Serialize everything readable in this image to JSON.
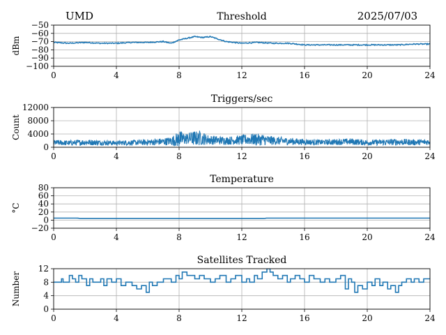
{
  "header": {
    "left": "UMD",
    "right": "2025/07/03"
  },
  "colors": {
    "line": "#1f77b4",
    "grid": "#b0b0b0",
    "axis": "#000000"
  },
  "chart_data": [
    {
      "type": "line",
      "title": "Threshold",
      "ylabel": "dBm",
      "xlim": [
        0,
        24
      ],
      "ylim": [
        -100,
        -50
      ],
      "xticks": [
        0,
        4,
        8,
        12,
        16,
        20,
        24
      ],
      "yticks": [
        -100,
        -90,
        -80,
        -70,
        -60,
        -50
      ],
      "ytick_labels": [
        "−100",
        "−90",
        "−80",
        "−70",
        "−60",
        "−50"
      ],
      "grid": true,
      "series": [
        {
          "x": [
            0,
            1,
            2,
            3,
            4,
            5,
            6,
            7,
            7.5,
            8,
            8.5,
            9,
            9.5,
            10,
            10.5,
            11,
            11.5,
            12,
            13,
            14,
            15,
            15.5,
            16,
            17,
            18,
            19,
            20,
            21,
            22,
            23,
            24
          ],
          "y": [
            -71,
            -72,
            -71,
            -72,
            -72,
            -71,
            -71,
            -70,
            -72,
            -68,
            -66,
            -64,
            -65,
            -64,
            -67,
            -70,
            -71,
            -72,
            -71,
            -72,
            -72,
            -73,
            -74,
            -74,
            -74,
            -74,
            -74,
            -74,
            -74,
            -73,
            -73
          ]
        }
      ]
    },
    {
      "type": "line",
      "title": "Triggers/sec",
      "ylabel": "Count",
      "xlim": [
        0,
        24
      ],
      "ylim": [
        0,
        12000
      ],
      "xticks": [
        0,
        4,
        8,
        12,
        16,
        20,
        24
      ],
      "yticks": [
        0,
        4000,
        8000,
        12000
      ],
      "ytick_labels": [
        "0",
        "4000",
        "8000",
        "12000"
      ],
      "grid": true,
      "series": [
        {
          "x": [
            0,
            1,
            2,
            3,
            4,
            5,
            6,
            7,
            7.5,
            8,
            8.5,
            9,
            9.5,
            10,
            11,
            12,
            12.5,
            13,
            14,
            15,
            16,
            17,
            18,
            19,
            20,
            21,
            22,
            23,
            24
          ],
          "y": [
            1400,
            1300,
            1500,
            1400,
            1300,
            1400,
            1500,
            1700,
            1900,
            2400,
            2600,
            2700,
            2500,
            2200,
            2000,
            2200,
            2400,
            2300,
            2000,
            1800,
            1600,
            1500,
            1600,
            1700,
            1400,
            1500,
            1600,
            1500,
            1600
          ],
          "spread": [
            800,
            800,
            900,
            800,
            700,
            800,
            900,
            1100,
            1300,
            2500,
            1700,
            2300,
            1800,
            1400,
            1200,
            1500,
            1700,
            1800,
            1300,
            1100,
            900,
            800,
            900,
            1000,
            800,
            900,
            1000,
            900,
            900
          ],
          "peaks": [
            [
              8.05,
              4700
            ],
            [
              8.8,
              4300
            ],
            [
              9.3,
              5000
            ],
            [
              9.6,
              4200
            ],
            [
              12.9,
              4000
            ],
            [
              13.3,
              3700
            ],
            [
              13.9,
              3300
            ]
          ]
        }
      ]
    },
    {
      "type": "line",
      "title": "Temperature",
      "ylabel": "°C",
      "xlim": [
        0,
        24
      ],
      "ylim": [
        -20,
        80
      ],
      "xticks": [
        0,
        4,
        8,
        12,
        16,
        20,
        24
      ],
      "yticks": [
        -20,
        0,
        20,
        40,
        60,
        80
      ],
      "ytick_labels": [
        "−20",
        "0",
        "20",
        "40",
        "60",
        "80"
      ],
      "grid": true,
      "series": [
        {
          "x": [
            0,
            1.55,
            1.6,
            13.45,
            13.5,
            24
          ],
          "y": [
            5,
            5,
            4,
            4,
            5,
            5
          ]
        }
      ]
    },
    {
      "type": "line",
      "title": "Satellites Tracked",
      "ylabel": "Number",
      "xlim": [
        0,
        24
      ],
      "ylim": [
        0,
        12
      ],
      "xticks": [
        0,
        4,
        8,
        12,
        16,
        20,
        24
      ],
      "yticks": [
        0,
        4,
        8,
        12
      ],
      "ytick_labels": [
        "0",
        "4",
        "8",
        "12"
      ],
      "grid": true,
      "series": [
        {
          "step": true,
          "x": [
            0,
            0.5,
            0.6,
            1,
            1.2,
            1.4,
            1.6,
            1.8,
            2.1,
            2.3,
            2.5,
            3,
            3.2,
            3.4,
            3.7,
            4,
            4.3,
            4.6,
            5,
            5.3,
            5.6,
            5.9,
            6.1,
            6.3,
            6.6,
            7,
            7.5,
            7.8,
            8.0,
            8.2,
            8.5,
            9,
            9.3,
            9.6,
            10,
            10.3,
            10.6,
            11,
            11.3,
            11.6,
            12,
            12.3,
            12.5,
            12.8,
            13,
            13.3,
            13.6,
            13.8,
            14,
            14.3,
            14.6,
            14.9,
            15.1,
            15.4,
            15.7,
            16,
            16.3,
            16.6,
            17,
            17.3,
            17.6,
            18,
            18.3,
            18.6,
            18.8,
            19,
            19.2,
            19.4,
            19.7,
            20,
            20.3,
            20.5,
            20.8,
            21,
            21.3,
            21.5,
            21.8,
            22,
            22.2,
            22.5,
            22.8,
            23,
            23.3,
            23.6,
            24
          ],
          "y": [
            8,
            9,
            8,
            10,
            9,
            8,
            10,
            9,
            7,
            9,
            8,
            9,
            7,
            9,
            8,
            9,
            7,
            8,
            7,
            6,
            7,
            5,
            8,
            7,
            8,
            9,
            8,
            10,
            9,
            11,
            10,
            9,
            10,
            9,
            8,
            9,
            10,
            8,
            9,
            10,
            8,
            9,
            8,
            10,
            9,
            11,
            12,
            11,
            10,
            9,
            10,
            8,
            9,
            10,
            9,
            8,
            10,
            9,
            8,
            9,
            8,
            9,
            10,
            6,
            9,
            8,
            5,
            7,
            6,
            8,
            7,
            9,
            7,
            8,
            6,
            7,
            5,
            7,
            8,
            9,
            8,
            9,
            8,
            9,
            9
          ]
        }
      ]
    }
  ]
}
